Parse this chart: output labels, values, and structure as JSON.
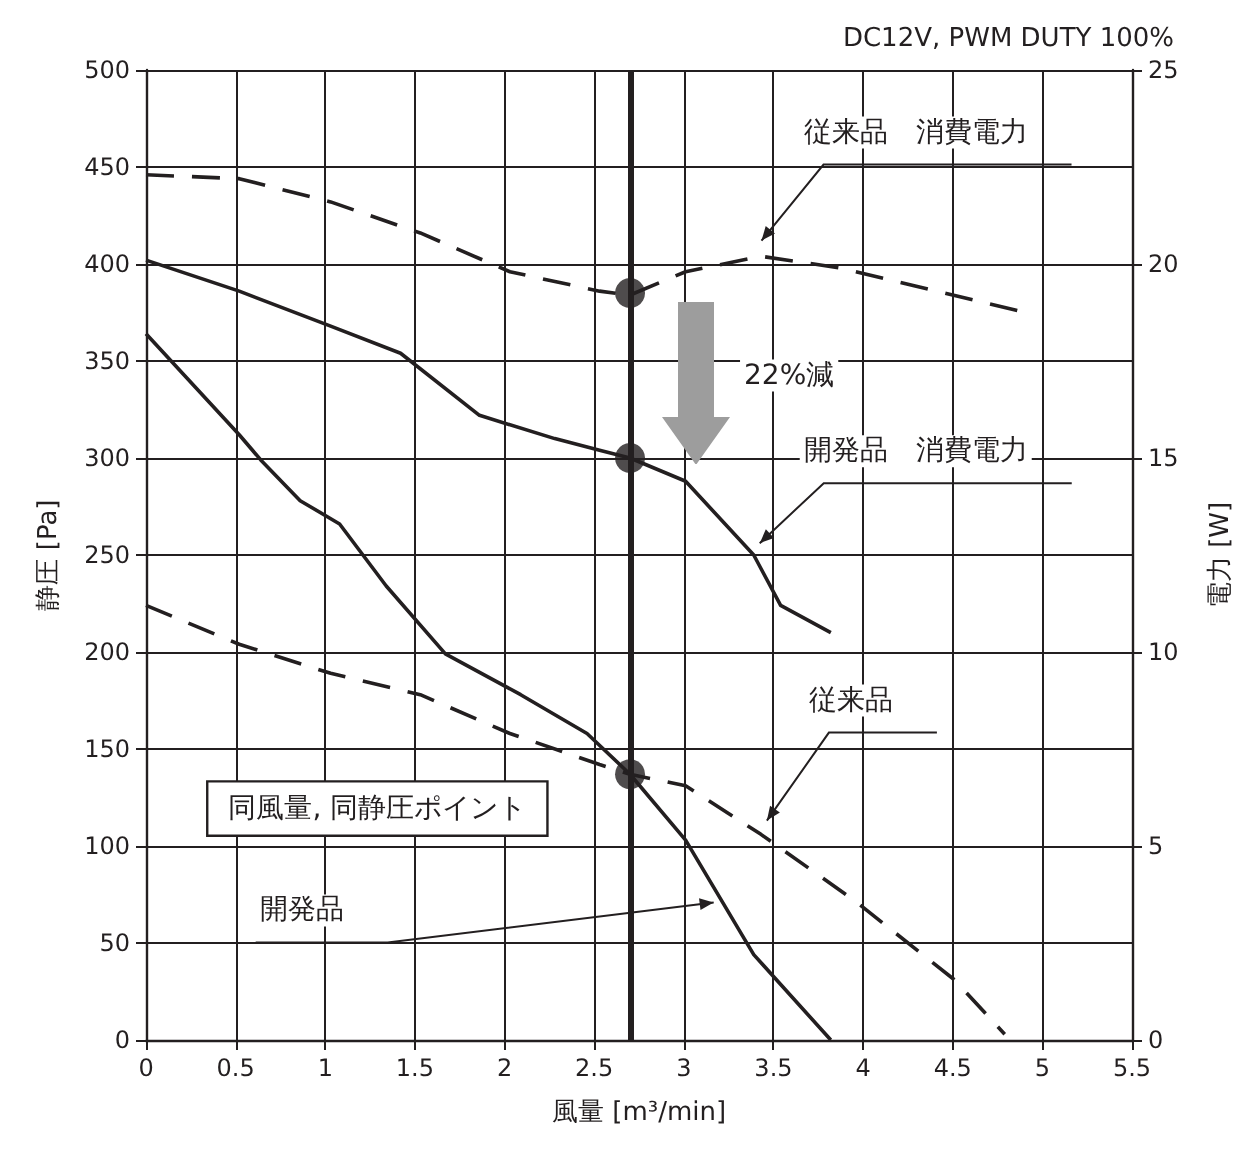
{
  "chart_data": {
    "type": "line",
    "title": "DC12V, PWM DUTY 100%",
    "xlabel": "風量 [m³/min]",
    "ylabel": "静圧 [Pa]",
    "y2label": "電力 [W]",
    "xlim": [
      0,
      5.5
    ],
    "xticks": [
      0,
      0.5,
      1,
      1.5,
      2,
      2.5,
      3,
      3.5,
      4,
      4.5,
      5,
      5.5
    ],
    "ylim": [
      0,
      500
    ],
    "yticks": [
      0,
      50,
      100,
      150,
      200,
      250,
      300,
      350,
      400,
      450,
      500
    ],
    "y2lim": [
      0,
      25
    ],
    "y2ticks": [
      0,
      5,
      10,
      15,
      20,
      25
    ],
    "grid": true,
    "legend": false,
    "series": [
      {
        "color": "#231f20",
        "line_style": "dashed",
        "axis": "y2",
        "x": [
          0,
          0.52,
          1.03,
          1.53,
          2.03,
          2.53,
          2.7,
          3.01,
          3.43,
          3.87,
          4.32,
          4.86
        ],
        "values": [
          22.3,
          22.2,
          21.6,
          20.8,
          19.8,
          19.3,
          19.2,
          19.8,
          20.2,
          19.9,
          19.4,
          18.8
        ]
      },
      {
        "color": "#231f20",
        "line_style": "solid",
        "axis": "y2",
        "x": [
          0,
          0.52,
          1.03,
          1.42,
          1.86,
          2.28,
          2.53,
          2.7,
          3.01,
          3.39,
          3.54,
          3.82
        ],
        "values": [
          20.1,
          19.3,
          18.4,
          17.7,
          16.1,
          15.5,
          15.2,
          15.0,
          14.4,
          12.5,
          11.2,
          10.5
        ]
      },
      {
        "color": "#231f20",
        "line_style": "dashed",
        "x": [
          0,
          0.52,
          1.03,
          1.53,
          2.03,
          2.53,
          2.7,
          3.01,
          3.43,
          3.95,
          4.51,
          4.79
        ],
        "values": [
          224,
          204,
          189,
          178,
          158,
          142,
          137,
          131,
          106,
          72,
          31,
          3
        ]
      },
      {
        "color": "#231f20",
        "line_style": "solid",
        "x": [
          0,
          0.52,
          0.64,
          0.86,
          1.08,
          1.34,
          1.67,
          2.09,
          2.46,
          2.7,
          3.01,
          3.39,
          3.82
        ],
        "values": [
          364,
          312,
          299,
          278,
          266,
          234,
          199,
          178,
          158,
          137,
          103,
          44,
          0
        ]
      },
      {
        "type": "scatter",
        "marker": "circle",
        "color": "#231f20",
        "x": [
          2.7,
          2.7,
          2.7
        ],
        "values": [
          385,
          300,
          137
        ]
      }
    ],
    "ref_lines": [
      {
        "axis": "x",
        "value": 2.7,
        "color": "#231f20"
      }
    ],
    "annotations": [
      {
        "text": "従来品　消費電力",
        "x": 3.4,
        "y": 409
      },
      {
        "text": "開発品　消費電力",
        "x": 3.39,
        "y": 253
      },
      {
        "text": "従来品",
        "x": 3.43,
        "y": 110
      },
      {
        "text": "開発品",
        "x": 3.2,
        "y": 74
      },
      "22%減",
      "同風量, 同静圧ポイント"
    ]
  }
}
